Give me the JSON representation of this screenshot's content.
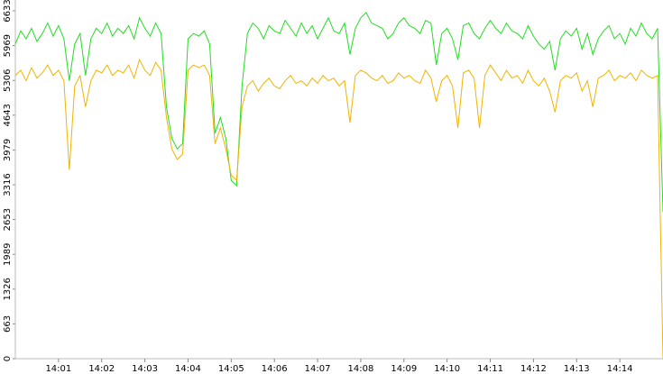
{
  "chart_data": {
    "type": "line",
    "categories": [
      null,
      null,
      null,
      null,
      null,
      null,
      null,
      null,
      "14:01",
      null,
      null,
      null,
      null,
      null,
      null,
      null,
      "14:02",
      null,
      null,
      null,
      null,
      null,
      null,
      null,
      "14:03",
      null,
      null,
      null,
      null,
      null,
      null,
      null,
      "14:04",
      null,
      null,
      null,
      null,
      null,
      null,
      null,
      "14:05",
      null,
      null,
      null,
      null,
      null,
      null,
      null,
      "14:06",
      null,
      null,
      null,
      null,
      null,
      null,
      null,
      "14:07",
      null,
      null,
      null,
      null,
      null,
      null,
      null,
      "14:08",
      null,
      null,
      null,
      null,
      null,
      null,
      null,
      "14:09",
      null,
      null,
      null,
      null,
      null,
      null,
      null,
      "14:10",
      null,
      null,
      null,
      null,
      null,
      null,
      null,
      "14:11",
      null,
      null,
      null,
      null,
      null,
      null,
      null,
      "14:12",
      null,
      null,
      null,
      null,
      null,
      null,
      null,
      "14:13",
      null,
      null,
      null,
      null,
      null,
      null,
      null,
      "14:14",
      null,
      null,
      null,
      null,
      null,
      null,
      null,
      null
    ],
    "series": [
      {
        "color": "#22dd22",
        "values": [
          6000,
          6250,
          6100,
          6300,
          6050,
          6200,
          6400,
          6150,
          6350,
          6100,
          5300,
          6000,
          6200,
          5400,
          6100,
          6300,
          6200,
          6400,
          6150,
          6300,
          6200,
          6350,
          6100,
          6500,
          6300,
          6150,
          6400,
          6200,
          4800,
          4200,
          4000,
          4100,
          6100,
          6200,
          6150,
          6250,
          6000,
          4300,
          4600,
          4200,
          3400,
          3300,
          5200,
          6200,
          6400,
          6300,
          6100,
          6350,
          6250,
          6200,
          6450,
          6300,
          6150,
          6400,
          6200,
          6350,
          6100,
          6300,
          6500,
          6250,
          6200,
          6400,
          5800,
          6300,
          6500,
          6600,
          6400,
          6350,
          6300,
          6100,
          6200,
          6400,
          6500,
          6350,
          6300,
          6200,
          6450,
          6400,
          5600,
          6200,
          6300,
          6100,
          5700,
          6350,
          6400,
          6200,
          6100,
          6300,
          6450,
          6300,
          6200,
          6400,
          6250,
          6200,
          6100,
          6350,
          6150,
          6000,
          5900,
          6050,
          5500,
          6100,
          6250,
          6150,
          6300,
          5900,
          6200,
          5800,
          6100,
          6250,
          6350,
          6100,
          6200,
          6000,
          6300,
          6150,
          6400,
          6200,
          6100,
          6300,
          2800
        ]
      },
      {
        "color": "#f0b400",
        "values": [
          5400,
          5500,
          5300,
          5550,
          5350,
          5450,
          5600,
          5400,
          5500,
          5300,
          3600,
          5200,
          5400,
          4800,
          5300,
          5500,
          5450,
          5600,
          5400,
          5500,
          5450,
          5600,
          5350,
          5700,
          5500,
          5400,
          5650,
          5500,
          4600,
          4000,
          3800,
          3900,
          5500,
          5600,
          5550,
          5600,
          5400,
          4100,
          4400,
          4000,
          3500,
          3400,
          4800,
          5200,
          5300,
          5100,
          5250,
          5350,
          5200,
          5150,
          5300,
          5400,
          5250,
          5300,
          5200,
          5350,
          5250,
          5400,
          5300,
          5350,
          5200,
          5300,
          4500,
          5400,
          5500,
          5450,
          5350,
          5300,
          5400,
          5250,
          5300,
          5450,
          5350,
          5400,
          5300,
          5250,
          5500,
          5350,
          4900,
          5300,
          5400,
          5200,
          4400,
          5450,
          5500,
          5350,
          4400,
          5400,
          5600,
          5450,
          5300,
          5500,
          5350,
          5400,
          5250,
          5500,
          5300,
          5200,
          5350,
          5100,
          4700,
          5300,
          5400,
          5350,
          5450,
          5100,
          5300,
          4800,
          5350,
          5400,
          5500,
          5300,
          5400,
          5350,
          5450,
          5300,
          5500,
          5400,
          5350,
          5400,
          0
        ]
      }
    ],
    "ylim": [
      0,
      6633
    ],
    "yticks": [
      0,
      663,
      1326,
      1989,
      2653,
      3316,
      3979,
      4643,
      5306,
      5969,
      6633
    ]
  }
}
